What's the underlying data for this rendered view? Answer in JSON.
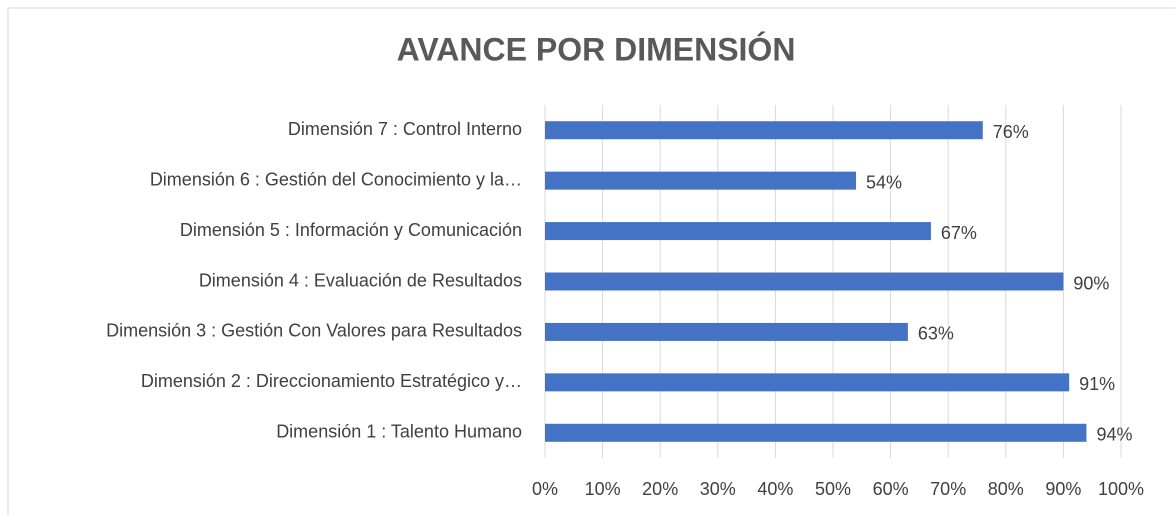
{
  "chart_data": {
    "type": "bar",
    "orientation": "horizontal",
    "title": "AVANCE POR DIMENSIÓN",
    "categories": [
      "Dimensión 7 : Control Interno",
      "Dimensión 6 : Gestión del Conocimiento y la…",
      "Dimensión 5 : Información y Comunicación",
      "Dimensión 4 : Evaluación de Resultados",
      "Dimensión 3 : Gestión Con Valores para Resultados",
      "Dimensión 2 : Direccionamiento Estratégico y…",
      "Dimensión 1 : Talento Humano"
    ],
    "values": [
      76,
      54,
      67,
      90,
      63,
      91,
      94
    ],
    "value_labels": [
      "76%",
      "54%",
      "67%",
      "90%",
      "63%",
      "91%",
      "94%"
    ],
    "color": "#4472c4",
    "xlim": [
      0,
      100
    ],
    "xticks": [
      {
        "value": 0,
        "label": "0%"
      },
      {
        "value": 10,
        "label": "10%"
      },
      {
        "value": 20,
        "label": "20%"
      },
      {
        "value": 30,
        "label": "30%"
      },
      {
        "value": 40,
        "label": "40%"
      },
      {
        "value": 50,
        "label": "50%"
      },
      {
        "value": 60,
        "label": "60%"
      },
      {
        "value": 70,
        "label": "70%"
      },
      {
        "value": 80,
        "label": "80%"
      },
      {
        "value": 90,
        "label": "90%"
      },
      {
        "value": 100,
        "label": "100%"
      }
    ],
    "grid": true
  }
}
